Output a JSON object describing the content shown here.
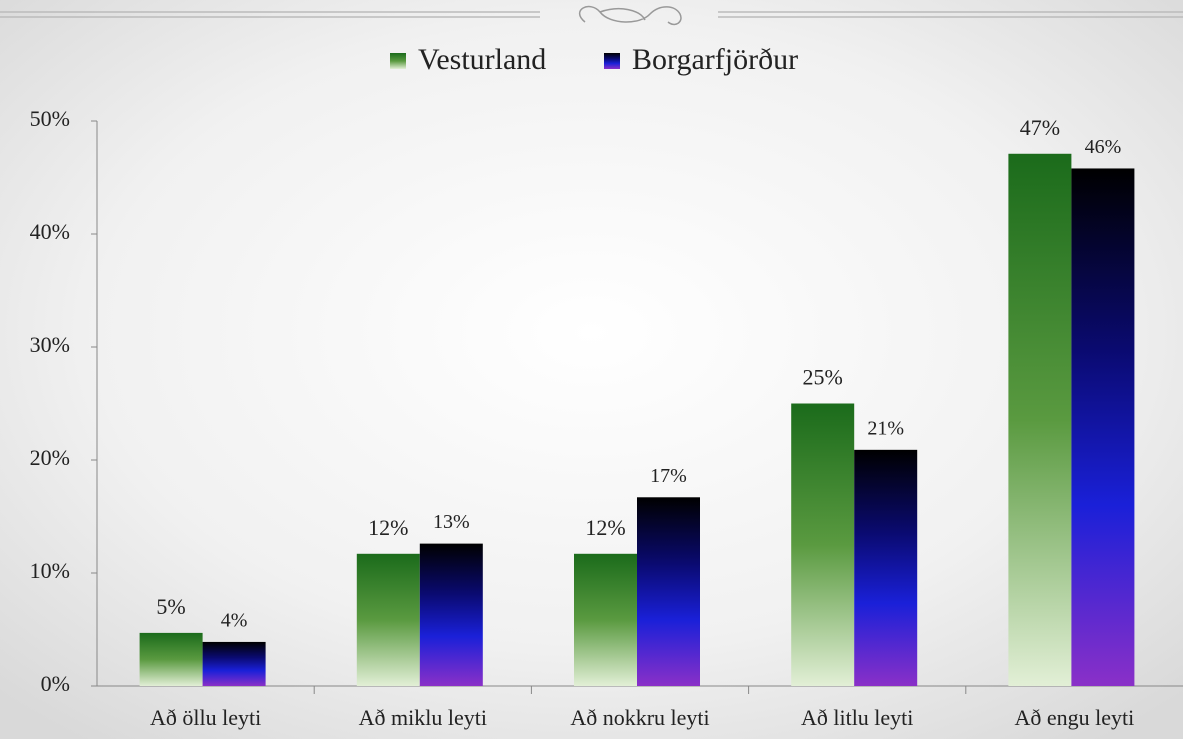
{
  "chart_data": {
    "type": "bar",
    "categories": [
      "Að öllu leyti",
      "Að miklu leyti",
      "Að nokkru leyti",
      "Að litlu leyti",
      "Að engu leyti"
    ],
    "series": [
      {
        "name": "Vesturland",
        "color": "#1b6b1b",
        "values": [
          4.7,
          11.7,
          11.7,
          25.0,
          47.1
        ],
        "value_labels": [
          "5%",
          "12%",
          "12%",
          "25%",
          "47%"
        ]
      },
      {
        "name": "Borgarfjörður",
        "color": "#000000",
        "values": [
          3.9,
          12.6,
          16.7,
          20.9,
          45.8
        ],
        "value_labels": [
          "4%",
          "13%",
          "17%",
          "21%",
          "46%"
        ]
      }
    ],
    "ylim": [
      0,
      50
    ],
    "yticks": [
      {
        "value": 0,
        "label": "0%"
      },
      {
        "value": 10,
        "label": "10%"
      },
      {
        "value": 20,
        "label": "20%"
      },
      {
        "value": 30,
        "label": "30%"
      },
      {
        "value": 40,
        "label": "40%"
      },
      {
        "value": 50,
        "label": "50%"
      }
    ]
  }
}
